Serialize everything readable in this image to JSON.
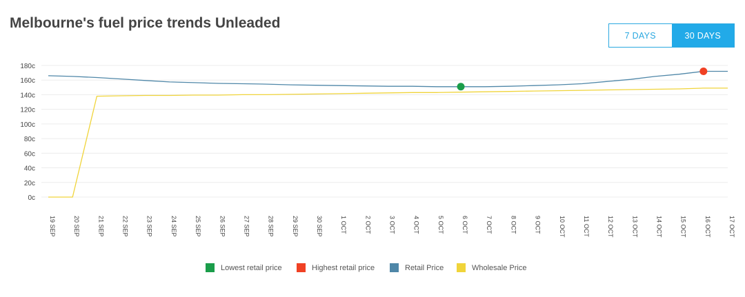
{
  "page": {
    "title": "Melbourne's fuel price trends Unleaded"
  },
  "range_toggle": {
    "options": [
      {
        "label": "7 DAYS",
        "active": false
      },
      {
        "label": "30 DAYS",
        "active": true
      }
    ]
  },
  "colors": {
    "lowest": "#1a9d4a",
    "highest": "#f04124",
    "retail": "#4f87a8",
    "wholesale": "#f0d43a",
    "grid": "#ececec",
    "axis_text": "#444444"
  },
  "legend": {
    "items": [
      {
        "label": "Lowest retail price",
        "color": "#1a9d4a"
      },
      {
        "label": "Highest retail price",
        "color": "#f04124"
      },
      {
        "label": "Retail Price",
        "color": "#4f87a8"
      },
      {
        "label": "Wholesale Price",
        "color": "#f0d43a"
      }
    ]
  },
  "chart_data": {
    "type": "line",
    "title": "Melbourne's fuel price trends Unleaded",
    "xlabel": "",
    "ylabel": "",
    "ylim": [
      0,
      180
    ],
    "yticks": [
      "0c",
      "20c",
      "40c",
      "60c",
      "80c",
      "100c",
      "120c",
      "140c",
      "160c",
      "180c"
    ],
    "ytick_values": [
      0,
      20,
      40,
      60,
      80,
      100,
      120,
      140,
      160,
      180
    ],
    "grid": true,
    "legend_position": "bottom",
    "categories": [
      "19 SEP",
      "20 SEP",
      "21 SEP",
      "22 SEP",
      "23 SEP",
      "24 SEP",
      "25 SEP",
      "26 SEP",
      "27 SEP",
      "28 SEP",
      "29 SEP",
      "30 SEP",
      "1 OCT",
      "2 OCT",
      "3 OCT",
      "4 OCT",
      "5 OCT",
      "6 OCT",
      "7 OCT",
      "8 OCT",
      "9 OCT",
      "10 OCT",
      "11 OCT",
      "12 OCT",
      "13 OCT",
      "14 OCT",
      "15 OCT",
      "16 OCT",
      "17 OCT"
    ],
    "series": [
      {
        "name": "Retail Price",
        "values": [
          166,
          165,
          163.5,
          161.5,
          159.5,
          157.5,
          156.5,
          155.5,
          155,
          154.5,
          153.5,
          153,
          152.5,
          152,
          151.5,
          151.5,
          151,
          151,
          151,
          151.5,
          152.5,
          153.5,
          155,
          158,
          161,
          165,
          168,
          172,
          172
        ]
      },
      {
        "name": "Wholesale Price",
        "values": [
          0,
          0,
          138,
          138.5,
          139,
          139,
          139.5,
          139.5,
          140,
          140,
          140.5,
          141,
          141.5,
          142,
          142.5,
          143,
          143,
          143.5,
          144,
          144.5,
          145,
          145.5,
          146,
          146.5,
          147,
          147.5,
          148,
          149,
          149
        ]
      }
    ],
    "markers": [
      {
        "name": "Lowest retail price",
        "category": "6 OCT",
        "value": 151
      },
      {
        "name": "Highest retail price",
        "category": "16 OCT",
        "value": 172
      }
    ]
  }
}
